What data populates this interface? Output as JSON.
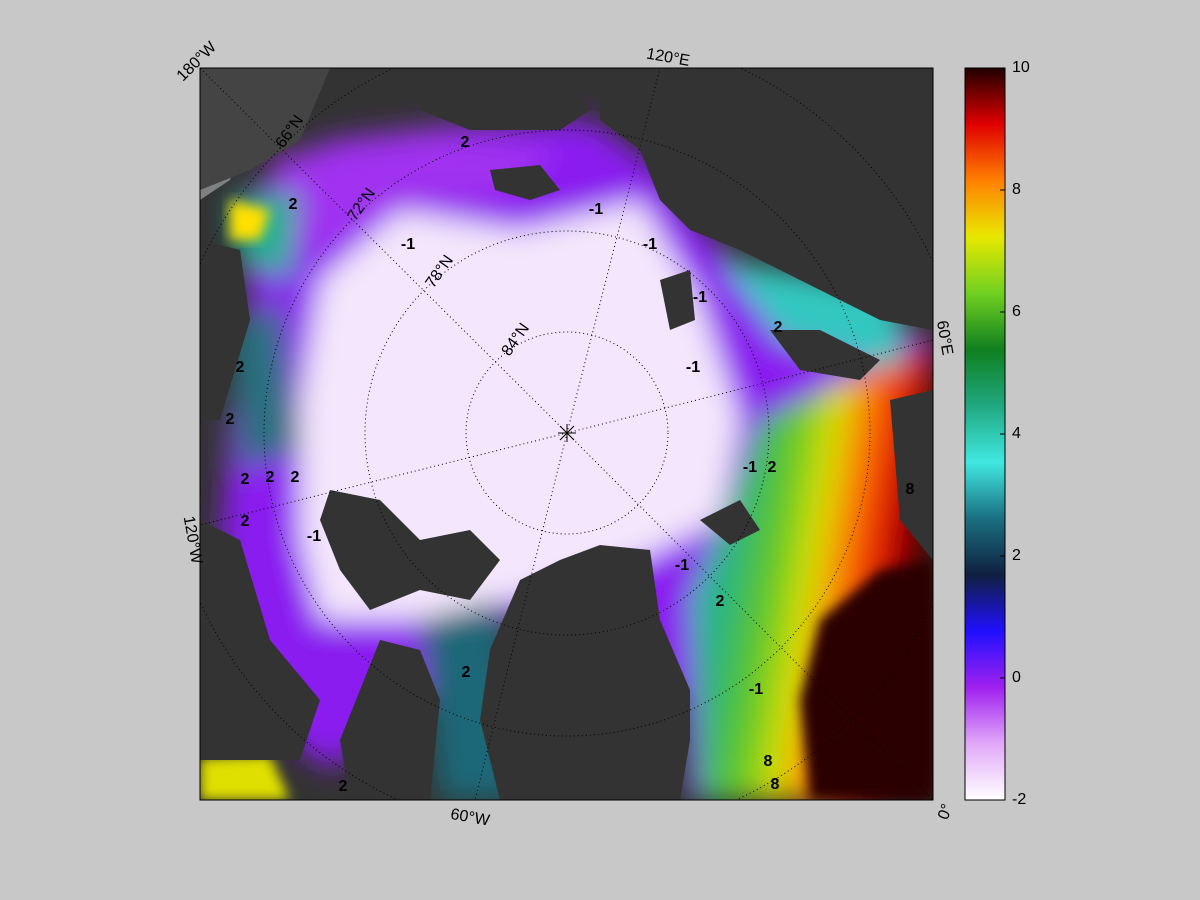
{
  "map": {
    "longitude_labels": [
      "180°W",
      "120°E",
      "60°E",
      "0°",
      "60°W",
      "120°W"
    ],
    "latitude_labels": [
      "66°N",
      "72°N",
      "78°N",
      "84°N"
    ],
    "contour_labels": [
      2,
      2,
      -1,
      -1,
      -1,
      -1,
      2,
      -1,
      -1,
      2,
      2,
      2,
      2,
      2,
      -1,
      2,
      -1,
      2,
      8,
      8,
      8,
      2,
      2,
      -1,
      2
    ],
    "colorbar": {
      "lim": [
        -2,
        10
      ],
      "ticks": [
        -2,
        0,
        2,
        4,
        6,
        8,
        10
      ],
      "colormap": [
        "#ffffff",
        "#e0a8f8",
        "#a020f0",
        "#2010ff",
        "#102040",
        "#1a7080",
        "#40e8e0",
        "#20a880",
        "#108020",
        "#70d020",
        "#e8e800",
        "#ff8000",
        "#e00000",
        "#200000"
      ]
    }
  }
}
